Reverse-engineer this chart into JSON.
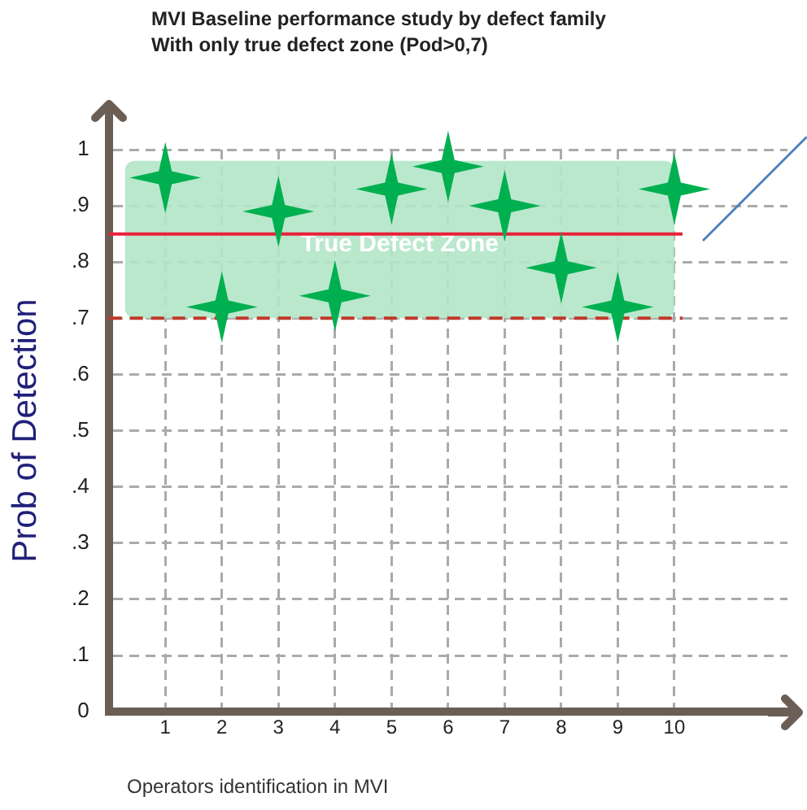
{
  "chart_data": {
    "type": "scatter",
    "title": "MVI Baseline performance study by defect family",
    "subtitle": "With only true defect zone (Pod>0,7)",
    "xlabel": "Operators identification in MVI",
    "ylabel": "Prob of Detection",
    "x": [
      1,
      2,
      3,
      4,
      5,
      6,
      7,
      8,
      9,
      10
    ],
    "series": [
      {
        "color": "#00b050",
        "values": [
          0.95,
          0.72,
          0.89,
          0.74,
          0.93,
          0.97,
          0.9,
          0.79,
          0.72,
          0.93
        ]
      }
    ],
    "xlim": [
      0,
      12
    ],
    "xticks": [
      1,
      2,
      3,
      4,
      5,
      6,
      7,
      8,
      9,
      10
    ],
    "ylim": [
      0,
      1
    ],
    "yticks": [
      0,
      {
        "value": 0.1,
        "label": ".1"
      },
      {
        "value": 0.2,
        "label": ".2"
      },
      {
        "value": 0.3,
        "label": ".3"
      },
      {
        "value": 0.4,
        "label": ".4"
      },
      {
        "value": 0.5,
        "label": ".5"
      },
      {
        "value": 0.6,
        "label": ".6"
      },
      {
        "value": 0.7,
        "label": ".7"
      },
      {
        "value": 0.8,
        "label": ".8"
      },
      {
        "value": 0.9,
        "label": ".9"
      },
      1
    ],
    "bands": [
      {
        "axis": "y",
        "from": 0.7,
        "to": 0.98,
        "label": "True Defect Zone",
        "color": "#b3e6c8"
      }
    ],
    "ref_lines": [
      {
        "axis": "y",
        "value": 0.85,
        "color": "#e8203a",
        "line_style": "solid"
      },
      {
        "axis": "y",
        "value": 0.7,
        "color": "#c0392b",
        "line_style": "dashed"
      }
    ],
    "grid": true,
    "legend": false,
    "marker": "star"
  }
}
